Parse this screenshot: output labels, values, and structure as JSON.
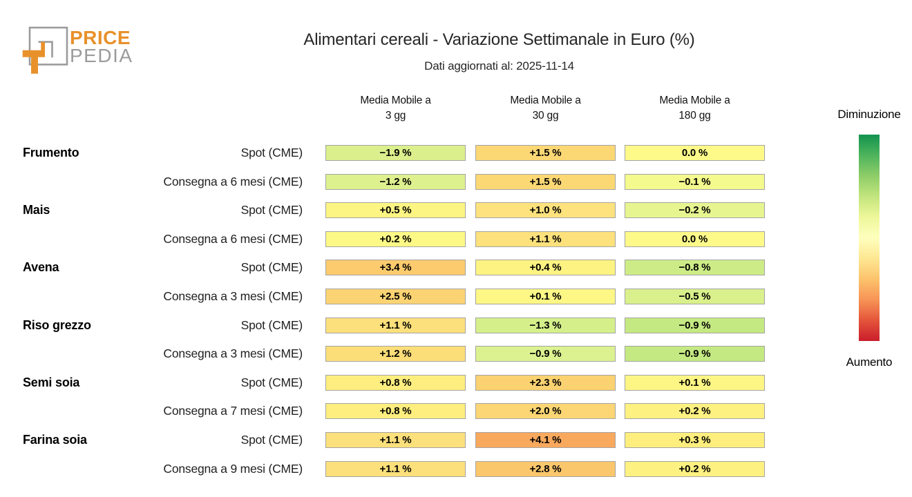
{
  "brand": {
    "name_top": "PRICE",
    "name_bottom": "PEDIA",
    "orange": "#E8912B",
    "gray": "#9B9B9B"
  },
  "header": {
    "title": "Alimentari cereali - Variazione Settimanale in Euro (%)",
    "subtitle": "Dati aggiornati al: 2025-11-14"
  },
  "legend": {
    "top_label": "Diminuzione",
    "bottom_label": "Aumento",
    "gradient_stops": [
      "#12934f",
      "#4eb45c",
      "#8ecd68",
      "#c3e57e",
      "#eef79a",
      "#feffbe",
      "#fee793",
      "#fdc36c",
      "#f79456",
      "#e4553a",
      "#ca1d2c"
    ]
  },
  "chart_data": {
    "type": "heatmap",
    "title": "Alimentari cereali - Variazione Settimanale in Euro (%)",
    "updated": "2025-11-14",
    "unit": "% weekly variation in Euro",
    "columns": [
      {
        "line1": "Media Mobile a",
        "line2": "3 gg"
      },
      {
        "line1": "Media Mobile a",
        "line2": "30 gg"
      },
      {
        "line1": "Media Mobile a",
        "line2": "180 gg"
      }
    ],
    "color_scale": {
      "decrease_end": "green",
      "increase_end": "red",
      "zero": "pale-yellow"
    },
    "rows": [
      {
        "group": "Frumento",
        "label": "Spot (CME)",
        "display": [
          "−1.9 %",
          "+1.5 %",
          "0.0 %"
        ],
        "values": [
          -1.9,
          1.5,
          0.0
        ],
        "colors": [
          "#dbf08d",
          "#fcd875",
          "#fdfa8a"
        ]
      },
      {
        "group": "",
        "label": "Consegna a 6 mesi (CME)",
        "display": [
          "−1.2 %",
          "+1.5 %",
          "−0.1 %"
        ],
        "values": [
          -1.2,
          1.5,
          -0.1
        ],
        "colors": [
          "#ddf18f",
          "#fcd875",
          "#f4fa8e"
        ]
      },
      {
        "group": "Mais",
        "label": "Spot (CME)",
        "display": [
          "+0.5 %",
          "+1.0 %",
          "−0.2 %"
        ],
        "values": [
          0.5,
          1.0,
          -0.2
        ],
        "colors": [
          "#fdf583",
          "#fde27d",
          "#e7f591"
        ]
      },
      {
        "group": "",
        "label": "Consegna a 6 mesi (CME)",
        "display": [
          "+0.2 %",
          "+1.1 %",
          "0.0 %"
        ],
        "values": [
          0.2,
          1.1,
          0.0
        ],
        "colors": [
          "#fdf987",
          "#fce17c",
          "#fdfa8a"
        ]
      },
      {
        "group": "Avena",
        "label": "Spot (CME)",
        "display": [
          "+3.4 %",
          "+0.4 %",
          "−0.8 %"
        ],
        "values": [
          3.4,
          0.4,
          -0.8
        ],
        "colors": [
          "#fbcb6e",
          "#fdf382",
          "#cdec87"
        ]
      },
      {
        "group": "",
        "label": "Consegna a 3 mesi (CME)",
        "display": [
          "+2.5 %",
          "+0.1 %",
          "−0.5 %"
        ],
        "values": [
          2.5,
          0.1,
          -0.5
        ],
        "colors": [
          "#fcd373",
          "#fdf786",
          "#d9f08c"
        ]
      },
      {
        "group": "Riso grezzo",
        "label": "Spot (CME)",
        "display": [
          "+1.1 %",
          "−1.3 %",
          "−0.9 %"
        ],
        "values": [
          1.1,
          -1.3,
          -0.9
        ],
        "colors": [
          "#fce07b",
          "#d5f08b",
          "#c5e982"
        ]
      },
      {
        "group": "",
        "label": "Consegna a 3 mesi (CME)",
        "display": [
          "+1.2 %",
          "−0.9 %",
          "−0.9 %"
        ],
        "values": [
          1.2,
          -0.9,
          -0.9
        ],
        "colors": [
          "#fcde79",
          "#dcf291",
          "#c5e982"
        ]
      },
      {
        "group": "Semi soia",
        "label": "Spot (CME)",
        "display": [
          "+0.8 %",
          "+2.3 %",
          "+0.1 %"
        ],
        "values": [
          0.8,
          2.3,
          0.1
        ],
        "colors": [
          "#fdee7f",
          "#fbd271",
          "#fdf685"
        ]
      },
      {
        "group": "",
        "label": "Consegna a 7 mesi (CME)",
        "display": [
          "+0.8 %",
          "+2.0 %",
          "+0.2 %"
        ],
        "values": [
          0.8,
          2.0,
          0.2
        ],
        "colors": [
          "#fdee7f",
          "#fcd674",
          "#fdf181"
        ]
      },
      {
        "group": "Farina soia",
        "label": "Spot (CME)",
        "display": [
          "+1.1 %",
          "+4.1 %",
          "+0.3 %"
        ],
        "values": [
          1.1,
          4.1,
          0.3
        ],
        "colors": [
          "#fce07b",
          "#f9a95d",
          "#fdee7d"
        ]
      },
      {
        "group": "",
        "label": "Consegna a 9 mesi (CME)",
        "display": [
          "+1.1 %",
          "+2.8 %",
          "+0.2 %"
        ],
        "values": [
          1.1,
          2.8,
          0.2
        ],
        "colors": [
          "#fce07b",
          "#fbc76c",
          "#fdf181"
        ]
      }
    ]
  }
}
